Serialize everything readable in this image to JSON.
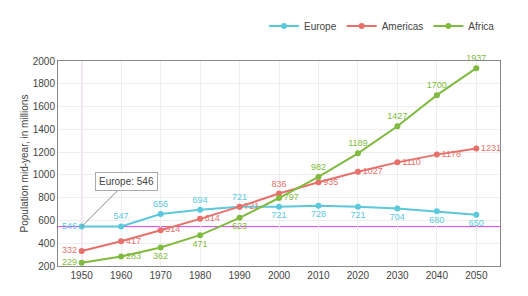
{
  "chart_data": {
    "type": "line",
    "x": [
      1950,
      1960,
      1970,
      1980,
      1990,
      2000,
      2010,
      2020,
      2030,
      2040,
      2050
    ],
    "series": [
      {
        "name": "Europe",
        "color": "#5bc8dc",
        "values": [
          546,
          547,
          656,
          694,
          721,
          721,
          728,
          721,
          704,
          680,
          650
        ]
      },
      {
        "name": "Americas",
        "color": "#e8706a",
        "values": [
          332,
          417,
          514,
          614,
          721,
          836,
          935,
          1027,
          1110,
          1178,
          1231
        ]
      },
      {
        "name": "Africa",
        "color": "#80bb40",
        "values": [
          229,
          283,
          362,
          471,
          623,
          797,
          982,
          1189,
          1427,
          1700,
          1937
        ]
      }
    ],
    "ylabel": "Population mid-year, in millions",
    "xlim": [
      1944,
      2056
    ],
    "xticks": [
      1950,
      1960,
      1970,
      1980,
      1990,
      2000,
      2010,
      2020,
      2030,
      2040,
      2050
    ],
    "ylim": [
      200,
      2000
    ],
    "yticks": [
      200,
      400,
      600,
      800,
      1000,
      1200,
      1400,
      1600,
      1800,
      2000
    ],
    "grid": true,
    "legend": "top",
    "data_labels": true,
    "marker": "circle",
    "annotations": [
      {
        "text": "Europe: 546",
        "x": 1950,
        "y": 546,
        "color": "#e040fb"
      }
    ]
  }
}
